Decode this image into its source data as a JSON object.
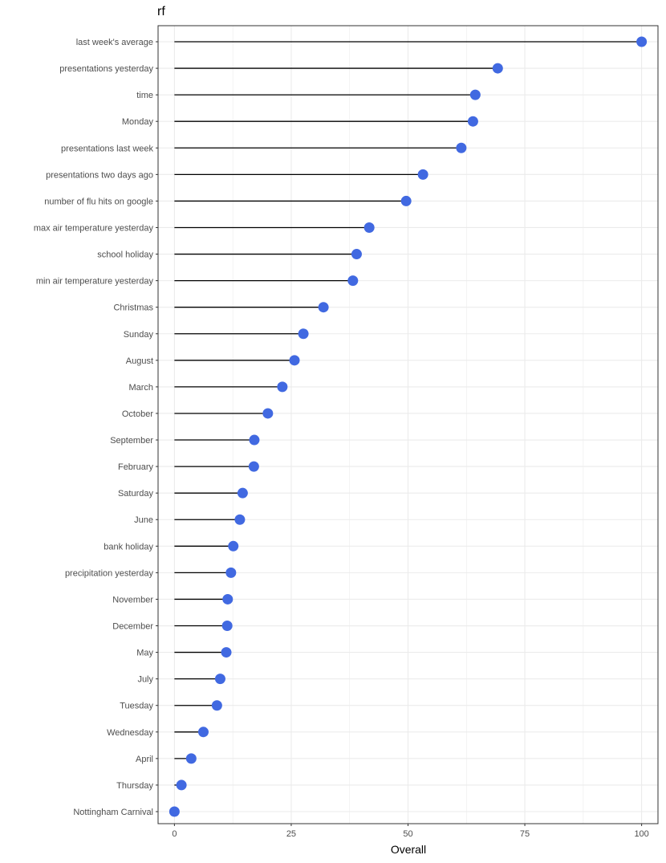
{
  "chart_data": {
    "type": "lollipop",
    "title": "rf",
    "xlabel": "Overall",
    "ylabel": "",
    "xlim": [
      -3.5,
      103.5
    ],
    "xticks": [
      0,
      25,
      50,
      75,
      100
    ],
    "grid": true,
    "legend": "none",
    "point_color": "#4169E1",
    "stem_color": "#000000",
    "items": [
      {
        "label": "last week's average",
        "value": 100
      },
      {
        "label": "presentations yesterday",
        "value": 69.2
      },
      {
        "label": "time",
        "value": 64.4
      },
      {
        "label": "Monday",
        "value": 63.9
      },
      {
        "label": "presentations last week",
        "value": 61.4
      },
      {
        "label": "presentations two days ago",
        "value": 53.2
      },
      {
        "label": "number of flu hits on google",
        "value": 49.6
      },
      {
        "label": "max air temperature yesterday",
        "value": 41.7
      },
      {
        "label": "school holiday",
        "value": 39.0
      },
      {
        "label": "min air temperature yesterday",
        "value": 38.2
      },
      {
        "label": "Christmas",
        "value": 31.9
      },
      {
        "label": "Sunday",
        "value": 27.6
      },
      {
        "label": "August",
        "value": 25.7
      },
      {
        "label": "March",
        "value": 23.1
      },
      {
        "label": "October",
        "value": 20.0
      },
      {
        "label": "September",
        "value": 17.1
      },
      {
        "label": "February",
        "value": 17.0
      },
      {
        "label": "Saturday",
        "value": 14.6
      },
      {
        "label": "June",
        "value": 14.0
      },
      {
        "label": "bank holiday",
        "value": 12.6
      },
      {
        "label": "precipitation yesterday",
        "value": 12.1
      },
      {
        "label": "November",
        "value": 11.4
      },
      {
        "label": "December",
        "value": 11.3
      },
      {
        "label": "May",
        "value": 11.1
      },
      {
        "label": "July",
        "value": 9.8
      },
      {
        "label": "Tuesday",
        "value": 9.1
      },
      {
        "label": "Wednesday",
        "value": 6.2
      },
      {
        "label": "April",
        "value": 3.6
      },
      {
        "label": "Thursday",
        "value": 1.5
      },
      {
        "label": "Nottingham Carnival",
        "value": 0
      }
    ]
  }
}
